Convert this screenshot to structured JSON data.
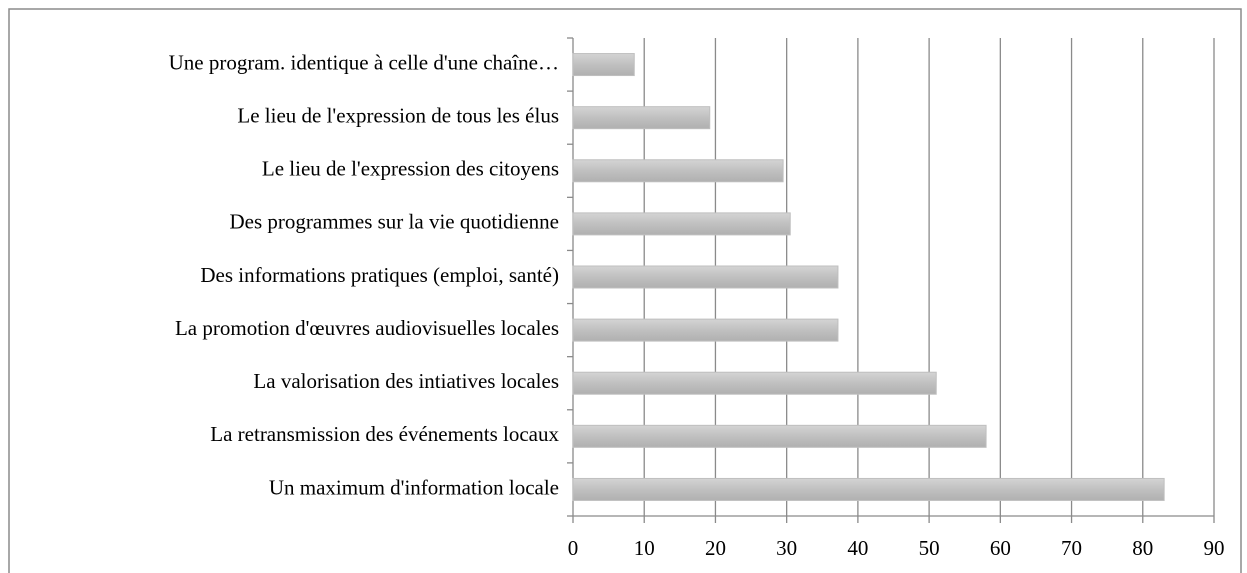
{
  "chart_data": {
    "type": "barh",
    "categories": [
      "Une program. identique à celle d'une chaîne…",
      "Le lieu de l'expression de tous les élus",
      "Le lieu de l'expression des citoyens",
      "Des programmes sur la vie quotidienne",
      "Des informations pratiques (emploi, santé)",
      "La promotion d'œuvres audiovisuelles locales",
      "La valorisation des intiatives locales",
      "La retransmission des événements locaux",
      "Un maximum d'information locale"
    ],
    "values": [
      8.6,
      19.2,
      29.5,
      30.5,
      37.2,
      37.2,
      51,
      58,
      83
    ],
    "color": "#bfbfbf",
    "xlim": [
      0,
      90
    ],
    "xticks": [
      0,
      10,
      20,
      30,
      40,
      50,
      60,
      70,
      80,
      90
    ],
    "grid": true
  }
}
